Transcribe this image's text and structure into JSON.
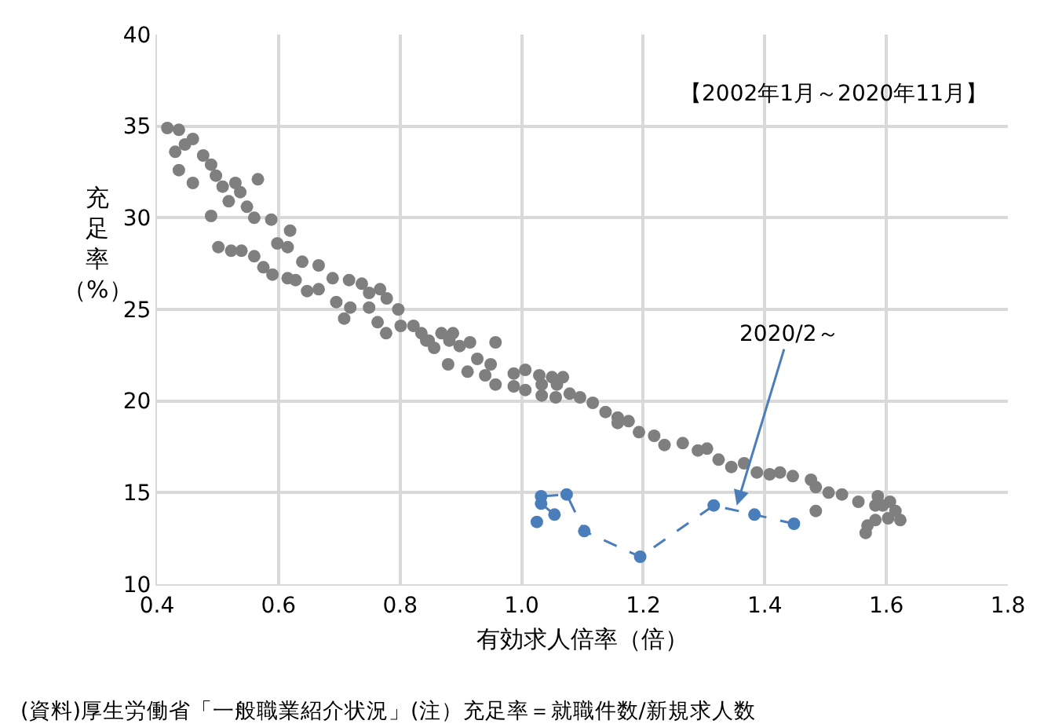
{
  "chart_data": {
    "type": "scatter",
    "xlabel": "有効求人倍率（倍）",
    "ylabel": "充足率（%）",
    "xlim": [
      0.4,
      1.8
    ],
    "xticks": [
      0.4,
      0.6,
      0.8,
      {
        "value": 1.0,
        "label": "1.0"
      },
      1.2,
      1.4,
      1.6,
      1.8
    ],
    "ylim": [
      10,
      40
    ],
    "yticks": [
      10,
      15,
      20,
      25,
      30,
      35,
      40
    ],
    "grid": true,
    "marker": "circle",
    "annotations": [
      "【2002年1月～2020年11月】",
      {
        "text": "2020/2～",
        "x": 1.354,
        "y": 14.3
      },
      "(資料)厚生労働省「一般職業紹介状況」(注）充足率＝就職件数/新規求人数"
    ],
    "series": [
      {
        "color": "#7f7f7f",
        "x": [
          0.417,
          0.436,
          0.459,
          0.446,
          0.43,
          0.436,
          0.459,
          0.476,
          0.489,
          0.497,
          0.508,
          0.529,
          0.537,
          0.566,
          0.518,
          0.548,
          0.56,
          0.588,
          0.489,
          0.619,
          0.598,
          0.615,
          0.501,
          0.522,
          0.539,
          0.56,
          0.575,
          0.59,
          0.615,
          0.628,
          0.639,
          0.666,
          0.647,
          0.666,
          0.689,
          0.716,
          0.737,
          0.767,
          0.749,
          0.695,
          0.718,
          0.708,
          0.778,
          0.749,
          0.763,
          0.777,
          0.797,
          0.801,
          0.822,
          0.835,
          0.847,
          0.868,
          0.881,
          0.856,
          0.843,
          0.887,
          0.898,
          0.915,
          0.957,
          0.879,
          0.911,
          0.927,
          0.949,
          0.94,
          0.957,
          0.987,
          1.006,
          0.987,
          1.006,
          1.029,
          1.05,
          1.068,
          1.033,
          1.058,
          1.033,
          1.056,
          1.079,
          1.096,
          1.117,
          1.138,
          1.158,
          1.158,
          1.176,
          1.193,
          1.218,
          1.235,
          1.265,
          1.29,
          1.305,
          1.324,
          1.345,
          1.366,
          1.387,
          1.408,
          1.425,
          1.446,
          1.476,
          1.484,
          1.505,
          1.527,
          1.554,
          1.586,
          1.582,
          1.615,
          1.484,
          1.569,
          1.566,
          1.582,
          1.603,
          1.623,
          1.594,
          1.606
        ],
        "values": [
          34.9,
          34.8,
          34.3,
          34.0,
          33.6,
          32.6,
          31.9,
          33.4,
          32.9,
          32.3,
          31.7,
          31.9,
          31.4,
          32.1,
          30.9,
          30.6,
          30.0,
          29.9,
          30.1,
          29.3,
          28.6,
          28.4,
          28.4,
          28.2,
          28.2,
          27.9,
          27.3,
          26.9,
          26.7,
          26.6,
          27.6,
          27.4,
          26.0,
          26.1,
          26.7,
          26.6,
          26.4,
          26.1,
          25.9,
          25.4,
          25.1,
          24.5,
          25.6,
          25.1,
          24.3,
          23.7,
          25.0,
          24.1,
          24.1,
          23.7,
          23.3,
          23.7,
          23.3,
          22.9,
          23.3,
          23.7,
          23.0,
          23.2,
          23.2,
          22.0,
          21.6,
          22.3,
          22.0,
          21.4,
          20.9,
          21.5,
          21.7,
          20.8,
          20.6,
          21.4,
          21.3,
          21.3,
          20.9,
          20.9,
          20.3,
          20.2,
          20.4,
          20.2,
          19.9,
          19.4,
          19.1,
          18.8,
          18.9,
          18.3,
          18.1,
          17.6,
          17.7,
          17.3,
          17.4,
          16.8,
          16.4,
          16.6,
          16.1,
          16.0,
          16.1,
          15.9,
          15.7,
          15.3,
          15.0,
          14.9,
          14.5,
          14.8,
          14.3,
          14.0,
          14.0,
          13.2,
          12.8,
          13.5,
          13.6,
          13.5,
          14.3,
          14.5
        ]
      },
      {
        "type": "line",
        "color": "#4a7ebb",
        "line_style": "dashed",
        "x": [
          1.448,
          1.383,
          1.316,
          1.195,
          1.103,
          1.074,
          1.032,
          1.032,
          1.054,
          1.025
        ],
        "values": [
          13.3,
          13.8,
          14.3,
          11.5,
          12.9,
          14.9,
          14.8,
          14.4,
          13.8,
          13.4
        ]
      }
    ]
  }
}
